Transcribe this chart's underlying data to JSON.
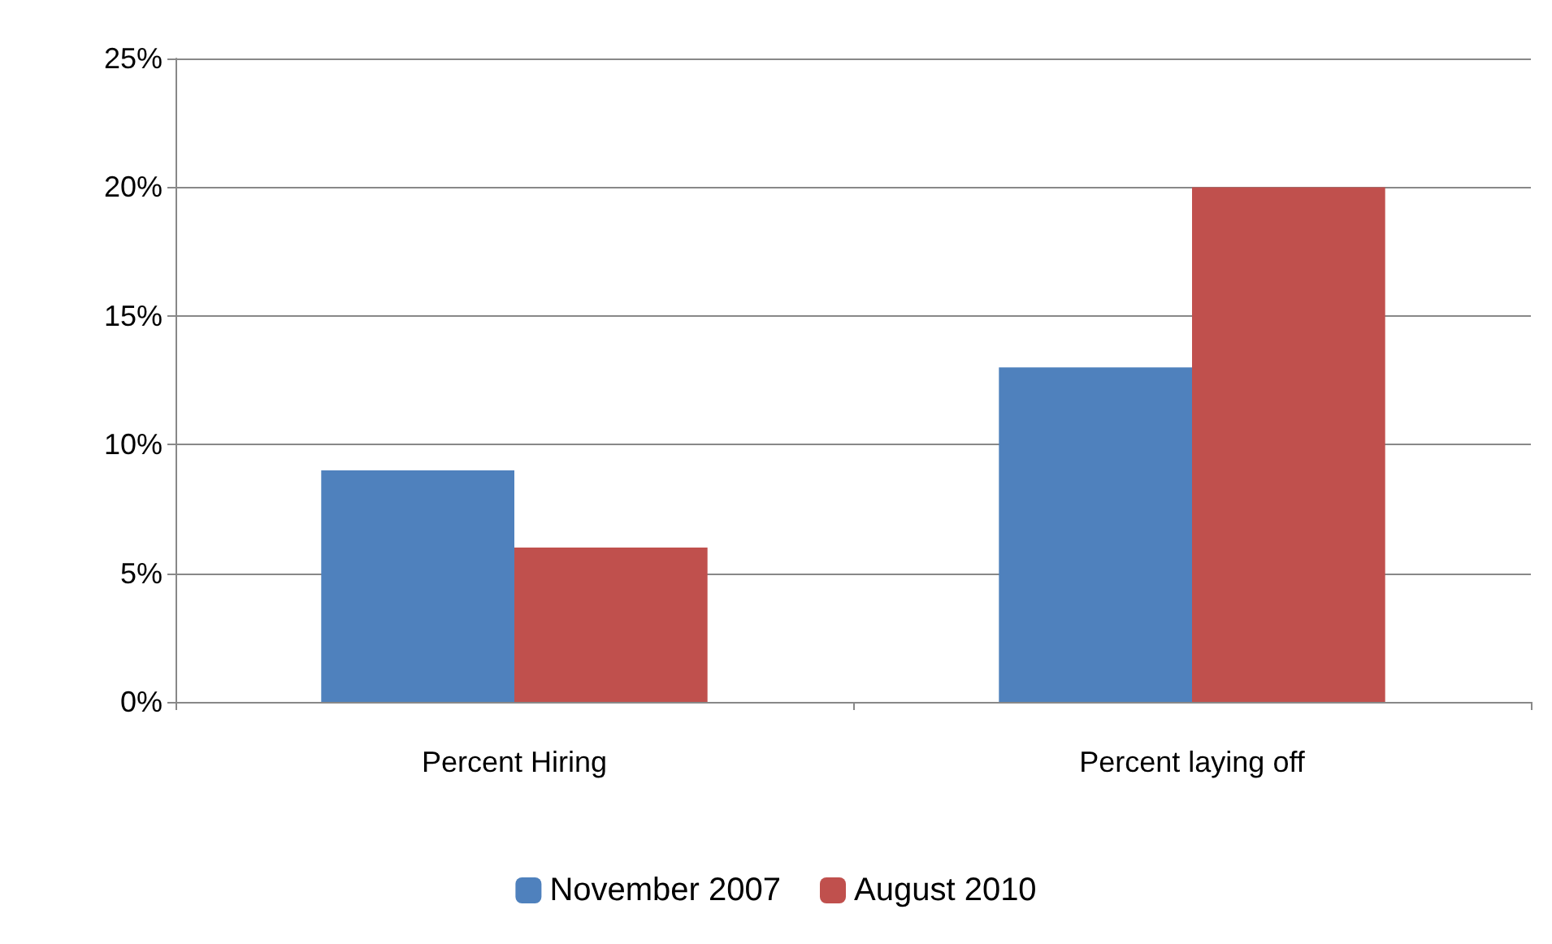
{
  "chart_data": {
    "type": "bar",
    "categories": [
      "Percent Hiring",
      "Percent laying off"
    ],
    "series": [
      {
        "name": "November 2007",
        "color": "#4f81bd",
        "values": [
          9,
          13
        ]
      },
      {
        "name": "August 2010",
        "color": "#c0504d",
        "values": [
          6,
          20
        ]
      }
    ],
    "ylim": [
      0,
      25
    ],
    "yticks": [
      {
        "value": 0,
        "label": "0%"
      },
      {
        "value": 5,
        "label": "5%"
      },
      {
        "value": 10,
        "label": "10%"
      },
      {
        "value": 15,
        "label": "15%"
      },
      {
        "value": 20,
        "label": "20%"
      },
      {
        "value": 25,
        "label": "25%"
      }
    ],
    "grid": "y",
    "legend": "bottom"
  }
}
